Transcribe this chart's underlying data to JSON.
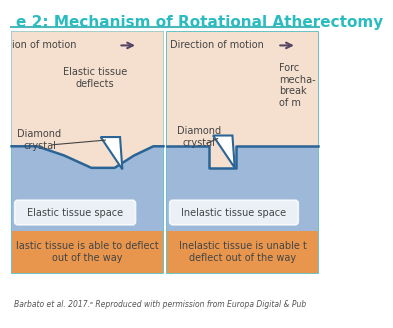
{
  "title": "e 2: Mechanism of Rotational Atherectomy",
  "title_color": "#2bbcbf",
  "title_fontsize": 11,
  "bg_color": "#ffffff",
  "peach_color": "#f5e0cf",
  "blue_color": "#9db8d8",
  "orange_color": "#e8964e",
  "dark_blue": "#2a6496",
  "border_color": "#4db8bc",
  "text_color": "#444444",
  "arrow_color": "#554466",
  "caption": "Barbato et al. 2017.ᵃ Reproduced with permission from Europa Digital & Pub",
  "left_panel": {
    "direction_text": "ion of motion",
    "label1": "Elastic tissue\ndeflects",
    "label2": "Diamond\ncrystal",
    "tissue_label": "Elastic tissue space",
    "bottom_text": "lastic tissue is able to deflect\nout of the way"
  },
  "right_panel": {
    "direction_text": "Direction of motion",
    "label1": "Diamond\ncrystal",
    "label2": "Forc\nmecha-\nbreak\nof m",
    "tissue_label": "Inelastic tissue space",
    "bottom_text": "Inelastic tissue is unable t\ndeflect out of the way"
  }
}
